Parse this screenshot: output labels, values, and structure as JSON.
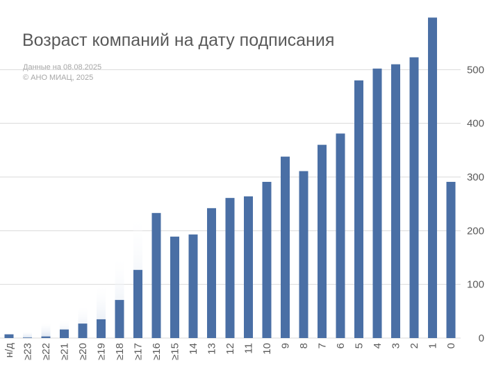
{
  "title": "Возраст компаний на дату подписания",
  "notes": {
    "date": "Данные на 08.08.2025",
    "copyright": "© АНО МИАЦ, 2025"
  },
  "colors": {
    "bar": "#4a6fa5",
    "ghost": "#d6e0ee",
    "grid": "#d9d9d9",
    "text": "#595959"
  },
  "chart_data": {
    "type": "bar",
    "title": "Возраст компаний на дату подписания",
    "xlabel": "",
    "ylabel": "",
    "ylim": [
      0,
      600
    ],
    "y_ticks": [
      0,
      100,
      200,
      300,
      400,
      500
    ],
    "y_axis_position": "right",
    "grid": true,
    "categories": [
      "н/д",
      "≥23",
      "≥22",
      "≥21",
      "≥20",
      "≥19",
      "≥18",
      "≥17",
      "≥16",
      "≥15",
      "14",
      "13",
      "12",
      "11",
      "10",
      "9",
      "8",
      "7",
      "6",
      "5",
      "4",
      "3",
      "2",
      "1",
      "0"
    ],
    "series": [
      {
        "values": [
          7,
          1,
          3,
          16,
          27,
          35,
          71,
          127,
          233,
          189,
          193,
          242,
          261,
          264,
          291,
          338,
          311,
          360,
          381,
          480,
          502,
          510,
          523,
          597,
          291
        ]
      },
      {
        "values": [
          0,
          12,
          28,
          32,
          58,
          96,
          148,
          222,
          90,
          0,
          0,
          0,
          0,
          0,
          0,
          0,
          0,
          0,
          0,
          0,
          0,
          0,
          0,
          0,
          0
        ]
      }
    ]
  }
}
